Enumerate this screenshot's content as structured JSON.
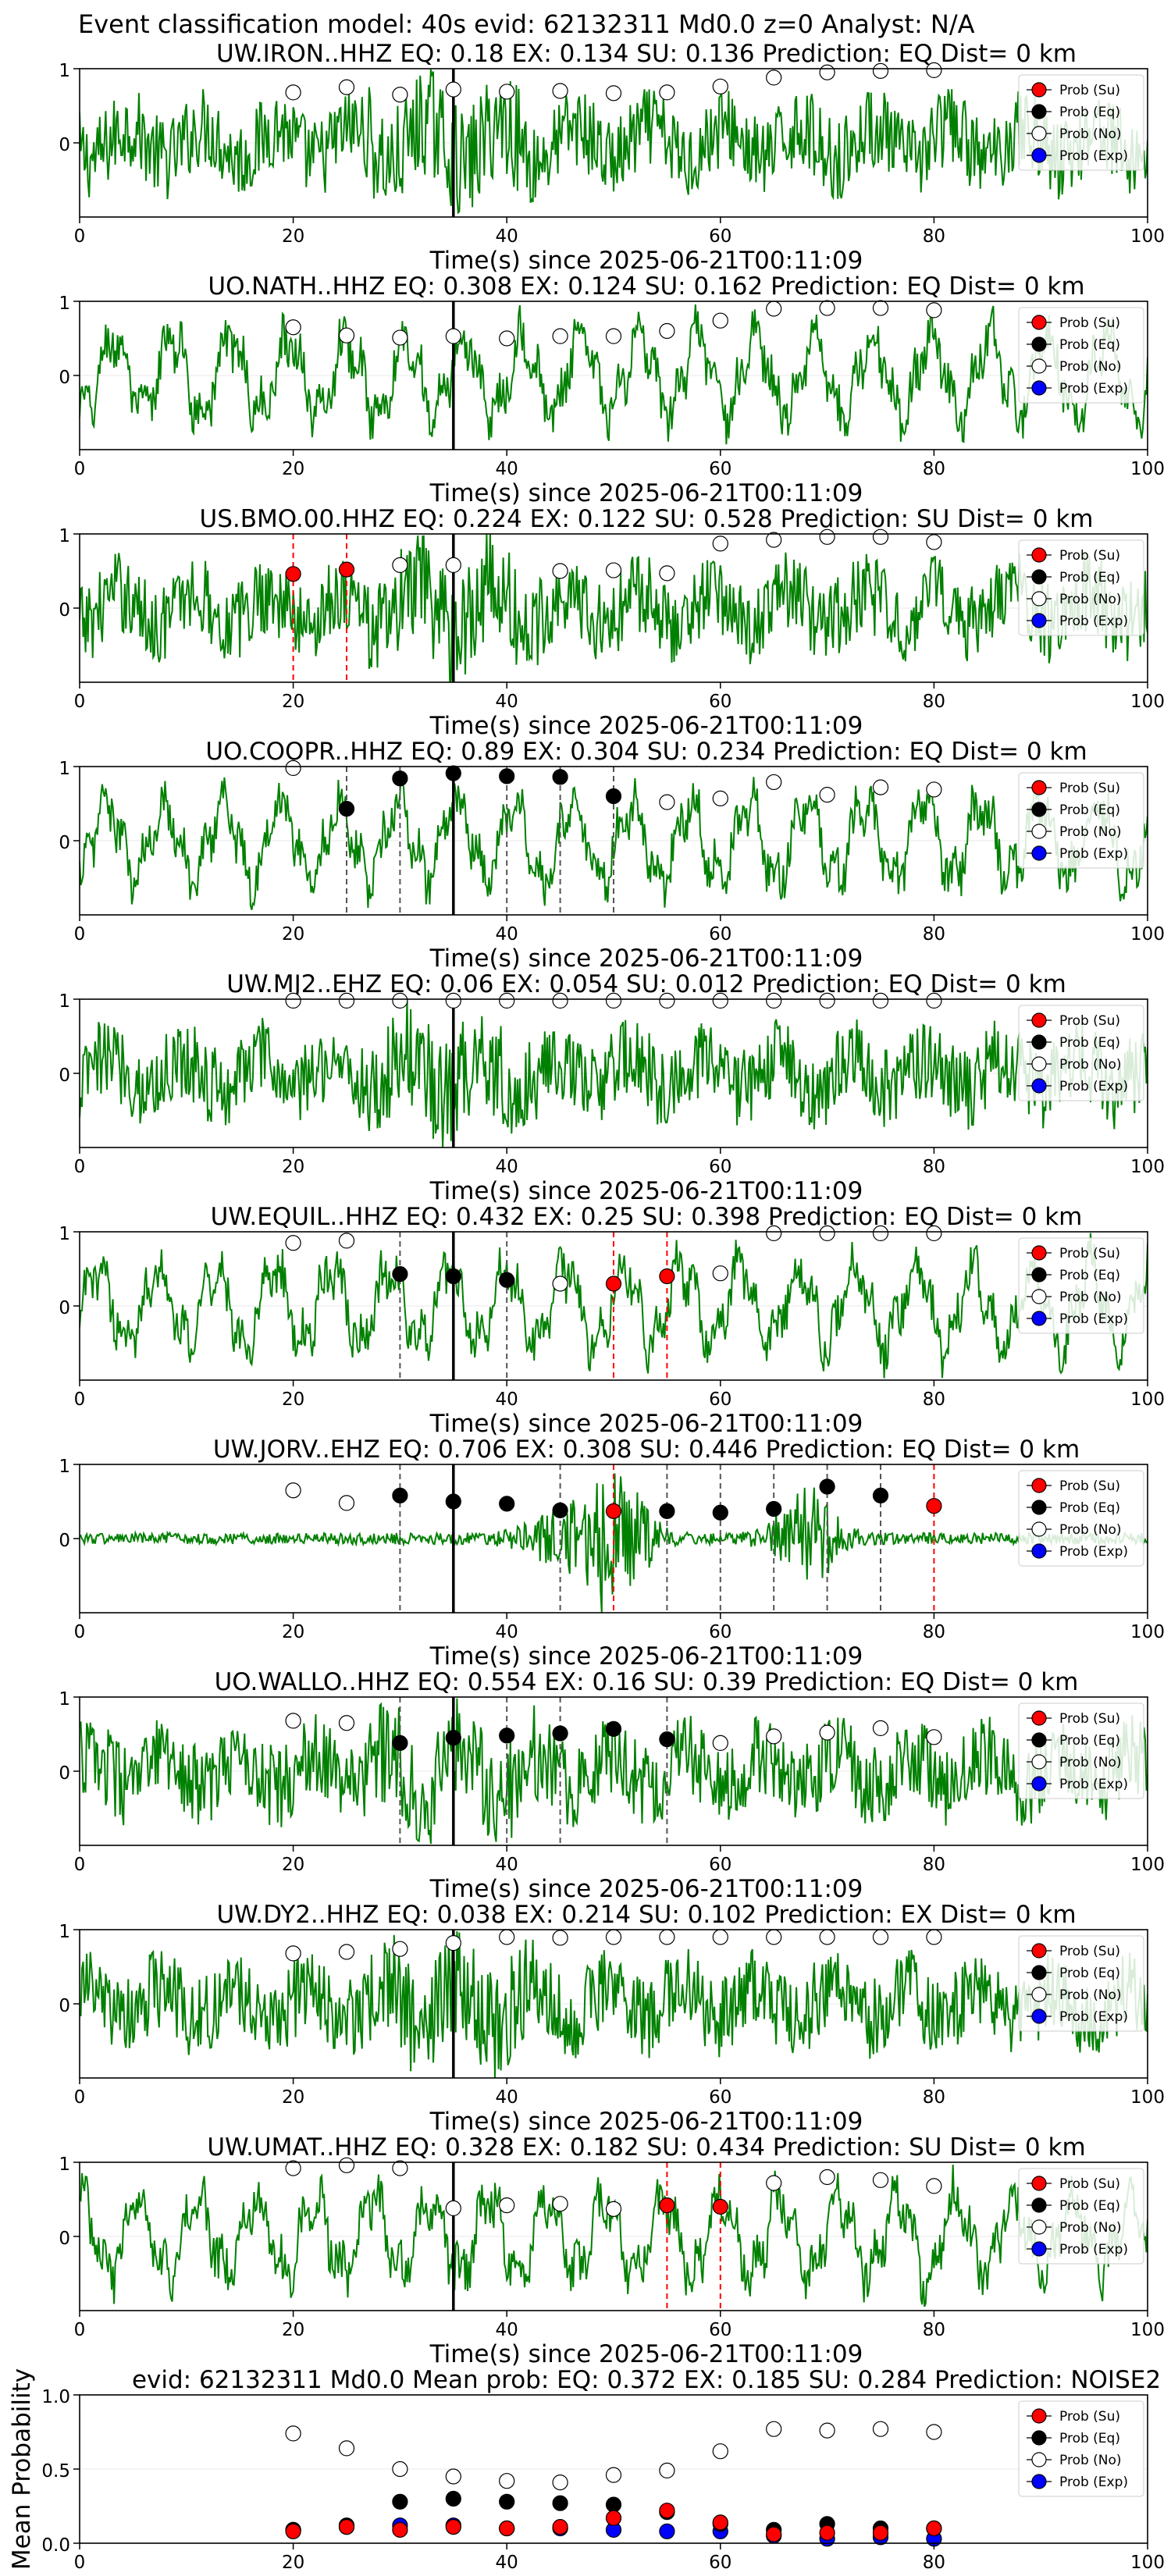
{
  "suptitle": "Event classification model: 40s evid: 62132311 Md0.0 z=0 Analyst: N/A",
  "colors": {
    "waveform": "#008000",
    "prob_su": "#ff0000",
    "prob_eq": "#000000",
    "prob_no": "#ffffff",
    "prob_exp": "#0000ff",
    "pick_eq_line": "#555555",
    "pick_su_line": "#ff0000",
    "origin_line": "#000000"
  },
  "legend": {
    "placement": "top-right",
    "entries": [
      "Prob (Su)",
      "Prob (Eq)",
      "Prob (No)",
      "Prob (Exp)"
    ]
  },
  "shared": {
    "xlabel": "Time(s) since 2025-06-21T00:11:09",
    "xlim": [
      0,
      100
    ],
    "xticks": [
      "0",
      "20",
      "40",
      "60",
      "80",
      "100"
    ],
    "ylim": [
      -1,
      1
    ],
    "yticks": [
      "0",
      "1"
    ],
    "origin_time": 35,
    "prob_times": [
      20,
      25,
      30,
      35,
      40,
      45,
      50,
      55,
      60,
      65,
      70,
      75,
      80
    ]
  },
  "chart_data": [
    {
      "type": "line",
      "title": "UW.IRON..HHZ   EQ: 0.18  EX: 0.134  SU: 0.136   Prediction: EQ    Dist= 0 km",
      "wave_style": "noisy",
      "eq_picks": [],
      "su_picks": [],
      "prob_no": [
        0.68,
        0.75,
        0.65,
        0.72,
        0.69,
        0.7,
        0.67,
        0.68,
        0.76,
        0.88,
        0.95,
        0.97,
        0.98
      ],
      "prob_eq": [],
      "prob_su": [],
      "prob_exp": []
    },
    {
      "type": "line",
      "title": "UO.NATH..HHZ   EQ: 0.308  EX: 0.124  SU: 0.162   Prediction: EQ    Dist= 0 km",
      "wave_style": "oscillatory",
      "eq_picks": [],
      "su_picks": [],
      "prob_no": [
        0.65,
        0.54,
        0.51,
        0.53,
        0.5,
        0.53,
        0.53,
        0.6,
        0.74,
        0.9,
        0.91,
        0.91,
        0.88
      ],
      "prob_eq": [],
      "prob_su": [],
      "prob_exp": []
    },
    {
      "type": "line",
      "title": "US.BMO.00.HHZ   EQ: 0.224  EX: 0.122  SU: 0.528   Prediction: SU    Dist= 0 km",
      "wave_style": "noisy",
      "eq_picks": [],
      "su_picks": [
        20,
        25
      ],
      "prob_no": [
        null,
        null,
        0.58,
        0.58,
        null,
        0.5,
        0.51,
        0.47,
        0.87,
        0.92,
        0.96,
        0.96,
        0.89
      ],
      "prob_eq": [],
      "prob_su": [
        0.46,
        0.52,
        null,
        null,
        null,
        null,
        null,
        null,
        null,
        null,
        null,
        null,
        null
      ],
      "prob_exp": []
    },
    {
      "type": "line",
      "title": "UO.COOPR..HHZ   EQ: 0.89  EX: 0.304  SU: 0.234   Prediction: EQ    Dist= 0 km",
      "wave_style": "oscillatory",
      "eq_picks": [
        25,
        30,
        40,
        45,
        50
      ],
      "su_picks": [],
      "prob_no": [
        0.98,
        null,
        null,
        null,
        null,
        null,
        null,
        0.52,
        0.57,
        0.79,
        0.62,
        0.72,
        0.69
      ],
      "prob_eq": [
        null,
        0.43,
        0.84,
        0.91,
        0.87,
        0.86,
        0.6,
        null,
        null,
        null,
        null,
        null,
        null
      ],
      "prob_su": [],
      "prob_exp": []
    },
    {
      "type": "line",
      "title": "UW.MJ2..EHZ   EQ: 0.06  EX: 0.054  SU: 0.012   Prediction: EQ    Dist= 0 km",
      "wave_style": "noisy",
      "eq_picks": [],
      "su_picks": [],
      "prob_no": [
        0.98,
        0.98,
        0.98,
        0.98,
        0.98,
        0.98,
        0.98,
        0.98,
        0.98,
        0.98,
        0.98,
        0.98,
        0.98
      ],
      "prob_eq": [],
      "prob_su": [],
      "prob_exp": []
    },
    {
      "type": "line",
      "title": "UW.EQUIL..HHZ   EQ: 0.432  EX: 0.25  SU: 0.398   Prediction: EQ    Dist= 0 km",
      "wave_style": "oscillatory",
      "eq_picks": [
        30,
        40
      ],
      "su_picks": [
        50,
        55
      ],
      "prob_no": [
        0.85,
        0.88,
        null,
        null,
        null,
        0.3,
        null,
        null,
        0.44,
        0.98,
        0.98,
        0.98,
        0.98
      ],
      "prob_eq": [
        null,
        null,
        0.43,
        0.4,
        0.35,
        null,
        null,
        null,
        null,
        null,
        null,
        null,
        null
      ],
      "prob_su": [
        null,
        null,
        null,
        null,
        null,
        null,
        0.3,
        0.4,
        null,
        null,
        null,
        null,
        null
      ],
      "prob_exp": []
    },
    {
      "type": "line",
      "title": "UW.JORV..EHZ   EQ: 0.706  EX: 0.308  SU: 0.446   Prediction: EQ    Dist= 0 km",
      "wave_style": "event",
      "eq_picks": [
        30,
        45,
        55,
        60,
        65,
        70,
        75
      ],
      "su_picks": [
        50,
        80
      ],
      "prob_no": [
        0.65,
        0.48,
        null,
        null,
        null,
        null,
        null,
        null,
        null,
        null,
        null,
        null,
        null
      ],
      "prob_eq": [
        null,
        null,
        0.58,
        0.5,
        0.47,
        0.38,
        null,
        0.37,
        0.35,
        0.4,
        0.7,
        0.58,
        null
      ],
      "prob_su": [
        null,
        null,
        null,
        null,
        null,
        null,
        0.37,
        null,
        null,
        null,
        null,
        null,
        0.44
      ],
      "prob_exp": []
    },
    {
      "type": "line",
      "title": "UO.WALLO..HHZ   EQ: 0.554  EX: 0.16  SU: 0.39   Prediction: EQ    Dist= 0 km",
      "wave_style": "noisy",
      "eq_picks": [
        30,
        40,
        45,
        55
      ],
      "su_picks": [],
      "prob_no": [
        0.68,
        0.65,
        null,
        null,
        null,
        null,
        null,
        null,
        0.38,
        0.47,
        0.52,
        0.58,
        0.46
      ],
      "prob_eq": [
        null,
        null,
        0.38,
        0.45,
        0.48,
        0.51,
        0.57,
        0.43,
        null,
        null,
        null,
        null,
        null
      ],
      "prob_su": [],
      "prob_exp": []
    },
    {
      "type": "line",
      "title": "UW.DY2..HHZ   EQ: 0.038  EX: 0.214  SU: 0.102   Prediction: EX    Dist= 0 km",
      "wave_style": "noisy",
      "eq_picks": [],
      "su_picks": [],
      "prob_no": [
        0.68,
        0.7,
        0.74,
        0.82,
        0.9,
        0.89,
        0.9,
        0.9,
        0.9,
        0.9,
        0.9,
        0.9,
        0.9
      ],
      "prob_eq": [],
      "prob_su": [],
      "prob_exp": []
    },
    {
      "type": "line",
      "title": "UW.UMAT..HHZ   EQ: 0.328  EX: 0.182  SU: 0.434   Prediction: SU    Dist= 0 km",
      "wave_style": "oscillatory",
      "eq_picks": [],
      "su_picks": [
        55,
        60
      ],
      "prob_no": [
        0.92,
        0.96,
        0.92,
        0.38,
        0.42,
        0.44,
        0.37,
        null,
        null,
        0.72,
        0.8,
        0.76,
        0.68
      ],
      "prob_eq": [],
      "prob_su": [
        null,
        null,
        null,
        null,
        null,
        null,
        null,
        0.42,
        0.4,
        null,
        null,
        null,
        null
      ],
      "prob_exp": []
    },
    {
      "type": "scatter",
      "title": "evid: 62132311  Md0.0   Mean prob:   EQ: 0.372  EX: 0.185  SU: 0.284   Prediction: NOISE2",
      "ylabel": "Mean Probability",
      "ylim": [
        0,
        1
      ],
      "yticks": [
        "0.0",
        "0.5",
        "1.0"
      ],
      "x": [
        20,
        25,
        30,
        35,
        40,
        45,
        50,
        55,
        60,
        65,
        70,
        75,
        80
      ],
      "prob_no": [
        0.74,
        0.64,
        0.5,
        0.45,
        0.42,
        0.41,
        0.46,
        0.49,
        0.62,
        0.77,
        0.76,
        0.77,
        0.75
      ],
      "prob_eq": [
        0.09,
        0.12,
        0.28,
        0.3,
        0.28,
        0.27,
        0.26,
        0.21,
        0.13,
        0.09,
        0.13,
        0.1,
        0.1
      ],
      "prob_su": [
        0.08,
        0.11,
        0.09,
        0.11,
        0.1,
        0.11,
        0.17,
        0.22,
        0.14,
        0.06,
        0.07,
        0.07,
        0.1
      ],
      "prob_exp": [
        0.09,
        0.11,
        0.12,
        0.12,
        0.1,
        0.1,
        0.09,
        0.08,
        0.08,
        0.05,
        0.03,
        0.04,
        0.03
      ]
    }
  ]
}
